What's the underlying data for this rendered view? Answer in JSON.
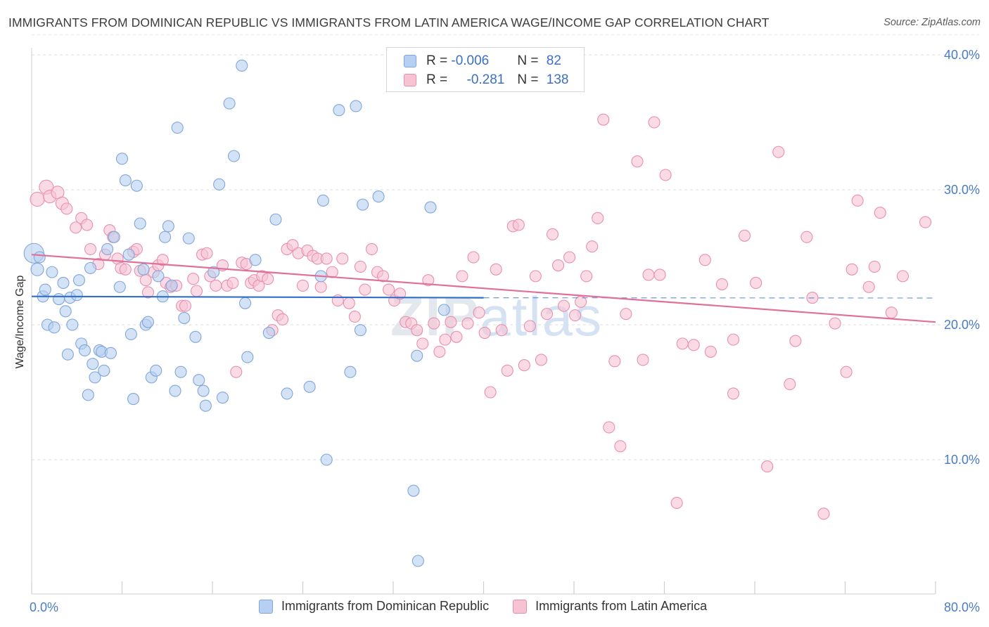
{
  "title": "IMMIGRANTS FROM DOMINICAN REPUBLIC VS IMMIGRANTS FROM LATIN AMERICA WAGE/INCOME GAP CORRELATION CHART",
  "source": "Source: ZipAtlas.com",
  "watermark": {
    "zip": "ZIP",
    "atlas": "atlas"
  },
  "legend": {
    "rows": [
      {
        "r_label": "R = ",
        "r_value": "-0.006",
        "n_label": "N = ",
        "n_value": "82"
      },
      {
        "r_label": "R = ",
        "r_value": "-0.281",
        "n_label": "N = ",
        "n_value": "138"
      }
    ]
  },
  "bottom_legend": {
    "series1": "Immigrants from Dominican Republic",
    "series2": "Immigrants from Latin America"
  },
  "colors": {
    "blue_fill": "#b7cff0",
    "blue_stroke": "#7fa6dc",
    "blue_line": "#2f6fc9",
    "pink_fill": "#f7c3d3",
    "pink_stroke": "#e98fae",
    "pink_line": "#e0709a",
    "grid": "#dddddd",
    "axis_text": "#4a7cc7"
  },
  "chart_data": {
    "type": "scatter",
    "title": "IMMIGRANTS FROM DOMINICAN REPUBLIC VS IMMIGRANTS FROM LATIN AMERICA WAGE/INCOME GAP CORRELATION CHART",
    "xlabel": "",
    "ylabel": "Wage/Income Gap",
    "xlim": [
      0,
      80
    ],
    "ylim": [
      0,
      42
    ],
    "x_ticks": [
      "0.0%",
      "80.0%"
    ],
    "y_ticks": [
      "10.0%",
      "20.0%",
      "30.0%",
      "40.0%"
    ],
    "y_tick_values": [
      10,
      20,
      30,
      40
    ],
    "grid": true,
    "legend_position": "top-center",
    "series": [
      {
        "name": "Immigrants from Dominican Republic",
        "R": -0.006,
        "N": 82,
        "trend": {
          "x": [
            0,
            40
          ],
          "y": [
            22.1,
            22.0
          ]
        },
        "points": [
          [
            0.2,
            25.3,
            14
          ],
          [
            0.5,
            24.1,
            9
          ],
          [
            0.7,
            25.0,
            8
          ],
          [
            1.0,
            22.1,
            8
          ],
          [
            1.2,
            22.6,
            8
          ],
          [
            1.4,
            20.0,
            8
          ],
          [
            1.8,
            23.9,
            8
          ],
          [
            2.0,
            19.8,
            8
          ],
          [
            2.4,
            21.9,
            8
          ],
          [
            2.8,
            23.1,
            8
          ],
          [
            3.0,
            21.0,
            8
          ],
          [
            3.2,
            17.8,
            8
          ],
          [
            3.4,
            22.0,
            8
          ],
          [
            3.6,
            20.0,
            8
          ],
          [
            4.0,
            22.2,
            8
          ],
          [
            4.2,
            23.3,
            8
          ],
          [
            4.4,
            18.6,
            8
          ],
          [
            4.7,
            18.1,
            8
          ],
          [
            5.0,
            14.8,
            8
          ],
          [
            5.2,
            24.2,
            8
          ],
          [
            5.4,
            17.1,
            8
          ],
          [
            5.6,
            16.1,
            8
          ],
          [
            6.0,
            18.1,
            8
          ],
          [
            6.2,
            18.0,
            8
          ],
          [
            6.4,
            16.6,
            8
          ],
          [
            6.7,
            25.6,
            8
          ],
          [
            7.0,
            17.9,
            8
          ],
          [
            7.3,
            26.5,
            8
          ],
          [
            7.8,
            22.8,
            8
          ],
          [
            8.0,
            32.3,
            8
          ],
          [
            8.3,
            30.7,
            8
          ],
          [
            8.6,
            25.2,
            8
          ],
          [
            8.8,
            19.3,
            8
          ],
          [
            9.0,
            14.5,
            8
          ],
          [
            9.3,
            30.3,
            8
          ],
          [
            9.6,
            27.5,
            8
          ],
          [
            9.9,
            24.1,
            8
          ],
          [
            10.1,
            20.0,
            8
          ],
          [
            10.3,
            20.2,
            8
          ],
          [
            10.6,
            16.1,
            8
          ],
          [
            11.0,
            16.6,
            8
          ],
          [
            11.2,
            23.6,
            8
          ],
          [
            11.6,
            22.1,
            8
          ],
          [
            11.8,
            26.5,
            8
          ],
          [
            12.1,
            27.3,
            8
          ],
          [
            12.4,
            22.9,
            8
          ],
          [
            12.7,
            15.1,
            8
          ],
          [
            12.9,
            34.6,
            8
          ],
          [
            13.2,
            16.5,
            8
          ],
          [
            13.5,
            20.5,
            8
          ],
          [
            13.9,
            26.4,
            8
          ],
          [
            14.5,
            19.1,
            8
          ],
          [
            14.8,
            15.9,
            8
          ],
          [
            15.2,
            15.1,
            8
          ],
          [
            15.4,
            14.0,
            8
          ],
          [
            16.1,
            23.9,
            8
          ],
          [
            16.6,
            30.4,
            8
          ],
          [
            16.9,
            14.6,
            8
          ],
          [
            17.5,
            36.4,
            8
          ],
          [
            17.9,
            32.5,
            8
          ],
          [
            18.6,
            39.2,
            8
          ],
          [
            18.9,
            21.6,
            8
          ],
          [
            19.1,
            17.6,
            8
          ],
          [
            19.8,
            24.8,
            8
          ],
          [
            21.0,
            19.4,
            8
          ],
          [
            21.6,
            27.8,
            8
          ],
          [
            22.6,
            14.9,
            8
          ],
          [
            24.6,
            15.4,
            8
          ],
          [
            25.6,
            23.6,
            8
          ],
          [
            25.8,
            29.2,
            8
          ],
          [
            26.1,
            10.0,
            8
          ],
          [
            27.2,
            35.9,
            8
          ],
          [
            28.2,
            16.5,
            8
          ],
          [
            28.7,
            36.2,
            8
          ],
          [
            29.1,
            19.6,
            8
          ],
          [
            29.3,
            28.9,
            8
          ],
          [
            30.7,
            29.5,
            8
          ],
          [
            33.8,
            7.7,
            8
          ],
          [
            34.1,
            17.7,
            8
          ],
          [
            34.2,
            2.5,
            8
          ],
          [
            35.3,
            28.7,
            8
          ],
          [
            36.5,
            21.1,
            8
          ]
        ]
      },
      {
        "name": "Immigrants from Latin America",
        "R": -0.281,
        "N": 138,
        "trend": {
          "x": [
            0,
            80
          ],
          "y": [
            25.2,
            20.2
          ]
        },
        "points": [
          [
            0.5,
            29.3,
            10
          ],
          [
            1.3,
            30.2,
            10
          ],
          [
            1.6,
            29.5,
            9
          ],
          [
            2.3,
            29.8,
            9
          ],
          [
            2.7,
            29.0,
            9
          ],
          [
            3.1,
            28.6,
            8
          ],
          [
            3.9,
            27.2,
            8
          ],
          [
            4.4,
            27.9,
            8
          ],
          [
            4.9,
            27.4,
            8
          ],
          [
            5.2,
            25.6,
            8
          ],
          [
            5.9,
            24.5,
            8
          ],
          [
            6.5,
            25.2,
            8
          ],
          [
            6.9,
            27.0,
            8
          ],
          [
            7.2,
            26.5,
            8
          ],
          [
            7.6,
            24.9,
            8
          ],
          [
            7.9,
            24.2,
            8
          ],
          [
            8.3,
            24.1,
            8
          ],
          [
            9.0,
            25.4,
            8
          ],
          [
            9.3,
            25.6,
            8
          ],
          [
            9.6,
            24.0,
            8
          ],
          [
            10.1,
            23.3,
            8
          ],
          [
            10.3,
            22.4,
            8
          ],
          [
            10.8,
            23.9,
            8
          ],
          [
            11.2,
            24.4,
            8
          ],
          [
            11.6,
            24.8,
            8
          ],
          [
            11.9,
            23.1,
            8
          ],
          [
            12.3,
            22.8,
            8
          ],
          [
            12.8,
            22.9,
            8
          ],
          [
            13.3,
            21.4,
            8
          ],
          [
            13.6,
            21.4,
            8
          ],
          [
            14.3,
            23.4,
            8
          ],
          [
            14.6,
            22.5,
            8
          ],
          [
            15.1,
            25.2,
            8
          ],
          [
            15.5,
            25.3,
            8
          ],
          [
            15.8,
            23.6,
            8
          ],
          [
            16.3,
            22.9,
            8
          ],
          [
            16.9,
            24.4,
            8
          ],
          [
            17.3,
            22.9,
            8
          ],
          [
            17.8,
            23.1,
            8
          ],
          [
            18.1,
            16.5,
            8
          ],
          [
            18.6,
            24.6,
            8
          ],
          [
            19.0,
            24.5,
            8
          ],
          [
            19.4,
            23.1,
            8
          ],
          [
            19.7,
            23.3,
            8
          ],
          [
            20.1,
            22.9,
            8
          ],
          [
            20.4,
            23.6,
            8
          ],
          [
            20.9,
            23.4,
            8
          ],
          [
            21.3,
            19.6,
            8
          ],
          [
            21.8,
            20.7,
            8
          ],
          [
            22.2,
            20.4,
            8
          ],
          [
            22.6,
            25.6,
            8
          ],
          [
            23.1,
            25.9,
            8
          ],
          [
            23.6,
            25.3,
            8
          ],
          [
            24.0,
            22.9,
            8
          ],
          [
            24.4,
            25.5,
            8
          ],
          [
            24.9,
            25.1,
            8
          ],
          [
            25.3,
            24.9,
            8
          ],
          [
            25.6,
            22.8,
            8
          ],
          [
            26.1,
            24.9,
            8
          ],
          [
            26.6,
            23.9,
            8
          ],
          [
            27.1,
            21.8,
            8
          ],
          [
            27.5,
            24.9,
            8
          ],
          [
            28.1,
            21.6,
            8
          ],
          [
            28.6,
            20.6,
            8
          ],
          [
            29.1,
            24.3,
            8
          ],
          [
            29.5,
            22.6,
            8
          ],
          [
            30.1,
            25.6,
            8
          ],
          [
            30.6,
            23.9,
            8
          ],
          [
            31.1,
            23.6,
            8
          ],
          [
            31.6,
            22.6,
            8
          ],
          [
            32.1,
            21.8,
            8
          ],
          [
            32.6,
            22.3,
            8
          ],
          [
            33.1,
            20.2,
            8
          ],
          [
            33.6,
            20.1,
            8
          ],
          [
            34.1,
            19.6,
            8
          ],
          [
            34.6,
            18.6,
            8
          ],
          [
            35.1,
            23.3,
            8
          ],
          [
            35.6,
            20.1,
            8
          ],
          [
            36.1,
            18.0,
            8
          ],
          [
            36.6,
            18.9,
            8
          ],
          [
            37.1,
            20.2,
            8
          ],
          [
            37.6,
            19.1,
            8
          ],
          [
            38.1,
            23.6,
            8
          ],
          [
            38.6,
            20.1,
            8
          ],
          [
            39.1,
            25.0,
            8
          ],
          [
            39.6,
            20.9,
            8
          ],
          [
            40.1,
            19.4,
            8
          ],
          [
            40.6,
            15.0,
            8
          ],
          [
            41.1,
            24.1,
            8
          ],
          [
            41.6,
            19.6,
            8
          ],
          [
            42.1,
            16.6,
            8
          ],
          [
            42.6,
            27.3,
            8
          ],
          [
            43.1,
            27.4,
            8
          ],
          [
            43.6,
            17.0,
            8
          ],
          [
            44.1,
            19.9,
            8
          ],
          [
            44.6,
            23.6,
            8
          ],
          [
            45.1,
            17.4,
            8
          ],
          [
            45.6,
            20.8,
            8
          ],
          [
            46.1,
            26.7,
            8
          ],
          [
            46.6,
            24.4,
            8
          ],
          [
            47.1,
            21.4,
            8
          ],
          [
            47.6,
            25.0,
            8
          ],
          [
            48.1,
            20.7,
            8
          ],
          [
            48.6,
            21.7,
            8
          ],
          [
            49.1,
            23.6,
            8
          ],
          [
            49.6,
            25.8,
            8
          ],
          [
            50.1,
            27.9,
            8
          ],
          [
            50.6,
            35.2,
            8
          ],
          [
            51.1,
            12.4,
            8
          ],
          [
            51.6,
            17.3,
            8
          ],
          [
            52.1,
            11.0,
            8
          ],
          [
            52.6,
            20.8,
            8
          ],
          [
            53.6,
            32.1,
            8
          ],
          [
            54.1,
            17.4,
            8
          ],
          [
            54.6,
            23.7,
            8
          ],
          [
            55.1,
            35.0,
            8
          ],
          [
            55.6,
            23.7,
            8
          ],
          [
            56.1,
            31.1,
            8
          ],
          [
            57.1,
            6.8,
            8
          ],
          [
            57.6,
            18.6,
            8
          ],
          [
            58.6,
            18.5,
            8
          ],
          [
            59.6,
            24.8,
            8
          ],
          [
            60.1,
            18.0,
            8
          ],
          [
            61.1,
            23.0,
            8
          ],
          [
            62.1,
            14.9,
            8
          ],
          [
            62.1,
            18.9,
            8
          ],
          [
            63.1,
            26.6,
            8
          ],
          [
            64.1,
            23.1,
            8
          ],
          [
            65.1,
            9.5,
            8
          ],
          [
            66.1,
            32.8,
            8
          ],
          [
            67.1,
            15.6,
            8
          ],
          [
            67.6,
            18.8,
            8
          ],
          [
            68.6,
            26.5,
            8
          ],
          [
            69.1,
            22.0,
            8
          ],
          [
            70.1,
            6.0,
            8
          ],
          [
            71.1,
            20.1,
            8
          ],
          [
            72.1,
            16.5,
            8
          ],
          [
            72.6,
            24.1,
            8
          ],
          [
            73.1,
            29.2,
            8
          ],
          [
            74.1,
            22.8,
            8
          ],
          [
            74.6,
            24.3,
            8
          ],
          [
            75.1,
            28.3,
            8
          ],
          [
            76.1,
            20.9,
            8
          ],
          [
            77.1,
            23.6,
            8
          ],
          [
            79.1,
            27.6,
            8
          ]
        ]
      }
    ]
  }
}
